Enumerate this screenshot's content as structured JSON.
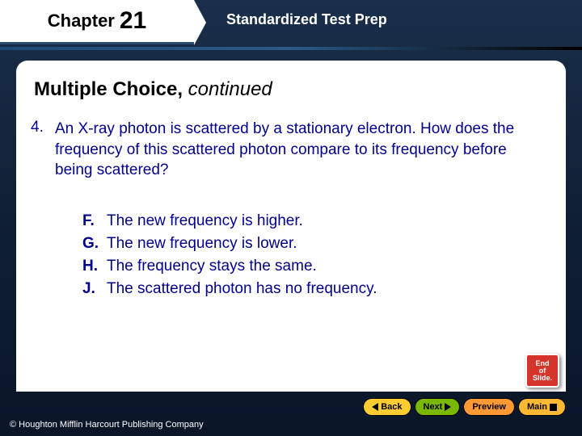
{
  "chapter": {
    "label": "Chapter",
    "number": "21"
  },
  "section": "Standardized Test Prep",
  "heading": {
    "main": "Multiple Choice,",
    "italic": " continued"
  },
  "question": {
    "num": "4.",
    "text": "An X-ray photon is scattered by a stationary electron. How does the frequency of this scattered photon compare to its frequency before being scattered?"
  },
  "options": [
    {
      "l": "F.",
      "t": "The new frequency is higher."
    },
    {
      "l": "G.",
      "t": "The new frequency is lower."
    },
    {
      "l": "H.",
      "t": "The frequency stays the same."
    },
    {
      "l": "J.",
      "t": "The scattered photon has no frequency."
    }
  ],
  "eos": {
    "l1": "End",
    "l2": "of",
    "l3": "Slide."
  },
  "nav": {
    "back": "Back",
    "next": "Next",
    "preview": "Preview",
    "main": "Main"
  },
  "copyright": "© Houghton Mifflin Harcourt Publishing Company"
}
